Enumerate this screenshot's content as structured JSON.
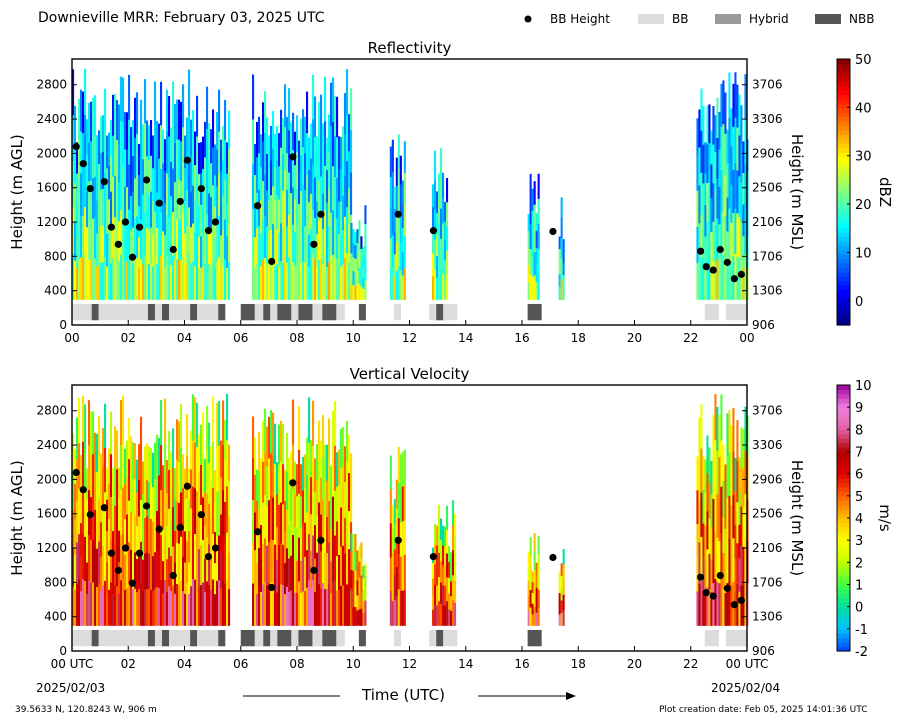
{
  "header": {
    "title": "Downieville MRR:  February 03, 2025 UTC",
    "legend": [
      {
        "label": "BB Height",
        "kind": "dot",
        "color": "#000000"
      },
      {
        "label": "BB",
        "kind": "box",
        "color": "#dcdcdc"
      },
      {
        "label": "Hybrid",
        "kind": "box",
        "color": "#999999"
      },
      {
        "label": "NBB",
        "kind": "box",
        "color": "#555555"
      }
    ]
  },
  "footer": {
    "location": "39.5633 N, 120.8243 W, 906 m",
    "created": "Plot creation date: Feb 05, 2025 14:01:36 UTC",
    "date_start": "2025/02/03",
    "date_end": "2025/02/04",
    "xlabel": "Time (UTC)"
  },
  "chart_data": [
    {
      "type": "heatmap",
      "title": "Reflectivity",
      "ylabel": "Height (m AGL)",
      "y2label": "Height (m MSL)",
      "xlim": [
        0,
        24
      ],
      "ylim": [
        0,
        3100
      ],
      "xticks": [
        "00",
        "02",
        "04",
        "06",
        "08",
        "10",
        "12",
        "14",
        "16",
        "18",
        "20",
        "22",
        "00"
      ],
      "yticks": [
        0,
        400,
        800,
        1200,
        1600,
        2000,
        2400,
        2800
      ],
      "y2ticks": [
        906,
        1306,
        1706,
        2106,
        2506,
        2906,
        3306,
        3706
      ],
      "colorbar": {
        "label": "dBZ",
        "min": -5,
        "max": 50,
        "ticks": [
          0,
          10,
          20,
          30,
          40,
          50
        ],
        "colors": [
          "#00007f",
          "#0000ff",
          "#007fff",
          "#00ffff",
          "#7fff7f",
          "#ffff00",
          "#ff7f00",
          "#ff0000",
          "#7f0000"
        ]
      },
      "echo_periods": [
        {
          "start": 0.0,
          "end": 5.6,
          "top": 3000,
          "base": 300
        },
        {
          "start": 6.4,
          "end": 9.9,
          "top": 3000,
          "base": 300
        },
        {
          "start": 9.9,
          "end": 10.4,
          "top": 1400,
          "base": 300
        },
        {
          "start": 11.3,
          "end": 11.8,
          "top": 2400,
          "base": 300
        },
        {
          "start": 12.8,
          "end": 13.3,
          "top": 2200,
          "base": 300
        },
        {
          "start": 16.2,
          "end": 16.6,
          "top": 1900,
          "base": 300
        },
        {
          "start": 17.3,
          "end": 17.5,
          "top": 1500,
          "base": 300
        },
        {
          "start": 22.2,
          "end": 24.0,
          "top": 3000,
          "base": 300
        }
      ],
      "bb_height": [
        [
          0.15,
          2080
        ],
        [
          0.4,
          1880
        ],
        [
          0.65,
          1590
        ],
        [
          1.15,
          1670
        ],
        [
          1.4,
          1140
        ],
        [
          1.65,
          940
        ],
        [
          1.9,
          1200
        ],
        [
          2.15,
          790
        ],
        [
          2.4,
          1140
        ],
        [
          2.65,
          1690
        ],
        [
          3.1,
          1420
        ],
        [
          3.6,
          880
        ],
        [
          3.85,
          1440
        ],
        [
          4.1,
          1920
        ],
        [
          4.6,
          1590
        ],
        [
          4.85,
          1100
        ],
        [
          5.1,
          1200
        ],
        [
          6.6,
          1390
        ],
        [
          7.1,
          740
        ],
        [
          7.85,
          1960
        ],
        [
          8.6,
          940
        ],
        [
          8.85,
          1290
        ],
        [
          11.6,
          1290
        ],
        [
          12.85,
          1100
        ],
        [
          17.1,
          1090
        ],
        [
          22.35,
          860
        ],
        [
          22.55,
          680
        ],
        [
          22.8,
          640
        ],
        [
          23.05,
          880
        ],
        [
          23.3,
          730
        ],
        [
          23.55,
          540
        ],
        [
          23.8,
          590
        ]
      ],
      "bb_type": [
        {
          "start": 0.0,
          "end": 0.7,
          "kind": "BB"
        },
        {
          "start": 0.7,
          "end": 0.95,
          "kind": "NBB"
        },
        {
          "start": 0.95,
          "end": 2.7,
          "kind": "BB"
        },
        {
          "start": 2.7,
          "end": 2.95,
          "kind": "NBB"
        },
        {
          "start": 2.95,
          "end": 3.2,
          "kind": "BB"
        },
        {
          "start": 3.2,
          "end": 3.45,
          "kind": "NBB"
        },
        {
          "start": 3.45,
          "end": 4.2,
          "kind": "BB"
        },
        {
          "start": 4.2,
          "end": 4.45,
          "kind": "NBB"
        },
        {
          "start": 4.45,
          "end": 5.2,
          "kind": "BB"
        },
        {
          "start": 5.2,
          "end": 5.45,
          "kind": "NBB"
        },
        {
          "start": 6.0,
          "end": 6.5,
          "kind": "NBB"
        },
        {
          "start": 6.5,
          "end": 6.8,
          "kind": "BB"
        },
        {
          "start": 6.8,
          "end": 7.05,
          "kind": "NBB"
        },
        {
          "start": 7.05,
          "end": 7.3,
          "kind": "BB"
        },
        {
          "start": 7.3,
          "end": 7.8,
          "kind": "NBB"
        },
        {
          "start": 7.8,
          "end": 8.05,
          "kind": "BB"
        },
        {
          "start": 8.05,
          "end": 8.55,
          "kind": "NBB"
        },
        {
          "start": 8.55,
          "end": 8.9,
          "kind": "BB"
        },
        {
          "start": 8.9,
          "end": 9.4,
          "kind": "NBB"
        },
        {
          "start": 9.4,
          "end": 9.7,
          "kind": "BB"
        },
        {
          "start": 10.2,
          "end": 10.45,
          "kind": "NBB"
        },
        {
          "start": 11.45,
          "end": 11.7,
          "kind": "BB"
        },
        {
          "start": 12.7,
          "end": 12.95,
          "kind": "BB"
        },
        {
          "start": 12.95,
          "end": 13.2,
          "kind": "NBB"
        },
        {
          "start": 13.2,
          "end": 13.7,
          "kind": "BB"
        },
        {
          "start": 16.2,
          "end": 16.7,
          "kind": "NBB"
        },
        {
          "start": 22.5,
          "end": 23.0,
          "kind": "BB"
        },
        {
          "start": 23.25,
          "end": 24.0,
          "kind": "BB"
        }
      ]
    },
    {
      "type": "heatmap",
      "title": "Vertical Velocity",
      "ylabel": "Height (m AGL)",
      "y2label": "Height (m MSL)",
      "xlim": [
        0,
        24
      ],
      "ylim": [
        0,
        3100
      ],
      "xticks": [
        "00 UTC",
        "02",
        "04",
        "06",
        "08",
        "10",
        "12",
        "14",
        "16",
        "18",
        "20",
        "22",
        "00 UTC"
      ],
      "yticks": [
        0,
        400,
        800,
        1200,
        1600,
        2000,
        2400,
        2800
      ],
      "y2ticks": [
        906,
        1306,
        1706,
        2106,
        2506,
        2906,
        3306,
        3706
      ],
      "colorbar": {
        "label": "m/s",
        "min": -2,
        "max": 10,
        "ticks": [
          -2,
          -1,
          0,
          1,
          2,
          3,
          4,
          5,
          6,
          7,
          8,
          9,
          10
        ],
        "colors": [
          "#0040ff",
          "#00c0ff",
          "#00e0a0",
          "#40ff40",
          "#c0ff00",
          "#ffff00",
          "#ffc000",
          "#ff6000",
          "#e00000",
          "#b00000",
          "#e060a0",
          "#f080e0",
          "#a000a0"
        ]
      },
      "echo_periods": [
        {
          "start": 0.0,
          "end": 5.6,
          "top": 3000,
          "base": 300
        },
        {
          "start": 6.4,
          "end": 9.9,
          "top": 3000,
          "base": 300
        },
        {
          "start": 9.9,
          "end": 10.4,
          "top": 1400,
          "base": 300
        },
        {
          "start": 11.3,
          "end": 11.8,
          "top": 2400,
          "base": 300
        },
        {
          "start": 12.8,
          "end": 13.6,
          "top": 1800,
          "base": 300
        },
        {
          "start": 16.2,
          "end": 16.6,
          "top": 1400,
          "base": 300
        },
        {
          "start": 17.3,
          "end": 17.5,
          "top": 1300,
          "base": 300
        },
        {
          "start": 22.2,
          "end": 24.0,
          "top": 3000,
          "base": 300
        }
      ],
      "bb_height": [
        [
          0.15,
          2080
        ],
        [
          0.4,
          1880
        ],
        [
          0.65,
          1590
        ],
        [
          1.15,
          1670
        ],
        [
          1.4,
          1140
        ],
        [
          1.65,
          940
        ],
        [
          1.9,
          1200
        ],
        [
          2.15,
          790
        ],
        [
          2.4,
          1140
        ],
        [
          2.65,
          1690
        ],
        [
          3.1,
          1420
        ],
        [
          3.6,
          880
        ],
        [
          3.85,
          1440
        ],
        [
          4.1,
          1920
        ],
        [
          4.6,
          1590
        ],
        [
          4.85,
          1100
        ],
        [
          5.1,
          1200
        ],
        [
          6.6,
          1390
        ],
        [
          7.1,
          740
        ],
        [
          7.85,
          1960
        ],
        [
          8.6,
          940
        ],
        [
          8.85,
          1290
        ],
        [
          11.6,
          1290
        ],
        [
          12.85,
          1100
        ],
        [
          17.1,
          1090
        ],
        [
          22.35,
          860
        ],
        [
          22.55,
          680
        ],
        [
          22.8,
          640
        ],
        [
          23.05,
          880
        ],
        [
          23.3,
          730
        ],
        [
          23.55,
          540
        ],
        [
          23.8,
          590
        ]
      ],
      "bb_type": [
        {
          "start": 0.0,
          "end": 0.7,
          "kind": "BB"
        },
        {
          "start": 0.7,
          "end": 0.95,
          "kind": "NBB"
        },
        {
          "start": 0.95,
          "end": 2.7,
          "kind": "BB"
        },
        {
          "start": 2.7,
          "end": 2.95,
          "kind": "NBB"
        },
        {
          "start": 2.95,
          "end": 3.2,
          "kind": "BB"
        },
        {
          "start": 3.2,
          "end": 3.45,
          "kind": "NBB"
        },
        {
          "start": 3.45,
          "end": 4.2,
          "kind": "BB"
        },
        {
          "start": 4.2,
          "end": 4.45,
          "kind": "NBB"
        },
        {
          "start": 4.45,
          "end": 5.2,
          "kind": "BB"
        },
        {
          "start": 5.2,
          "end": 5.45,
          "kind": "NBB"
        },
        {
          "start": 6.0,
          "end": 6.5,
          "kind": "NBB"
        },
        {
          "start": 6.5,
          "end": 6.8,
          "kind": "BB"
        },
        {
          "start": 6.8,
          "end": 7.05,
          "kind": "NBB"
        },
        {
          "start": 7.05,
          "end": 7.3,
          "kind": "BB"
        },
        {
          "start": 7.3,
          "end": 7.8,
          "kind": "NBB"
        },
        {
          "start": 7.8,
          "end": 8.05,
          "kind": "BB"
        },
        {
          "start": 8.05,
          "end": 8.55,
          "kind": "NBB"
        },
        {
          "start": 8.55,
          "end": 8.9,
          "kind": "BB"
        },
        {
          "start": 8.9,
          "end": 9.4,
          "kind": "NBB"
        },
        {
          "start": 9.4,
          "end": 9.7,
          "kind": "BB"
        },
        {
          "start": 10.2,
          "end": 10.45,
          "kind": "NBB"
        },
        {
          "start": 11.45,
          "end": 11.7,
          "kind": "BB"
        },
        {
          "start": 12.7,
          "end": 12.95,
          "kind": "BB"
        },
        {
          "start": 12.95,
          "end": 13.2,
          "kind": "NBB"
        },
        {
          "start": 13.2,
          "end": 13.7,
          "kind": "BB"
        },
        {
          "start": 16.2,
          "end": 16.7,
          "kind": "NBB"
        },
        {
          "start": 22.5,
          "end": 23.0,
          "kind": "BB"
        },
        {
          "start": 23.25,
          "end": 24.0,
          "kind": "BB"
        }
      ]
    }
  ]
}
